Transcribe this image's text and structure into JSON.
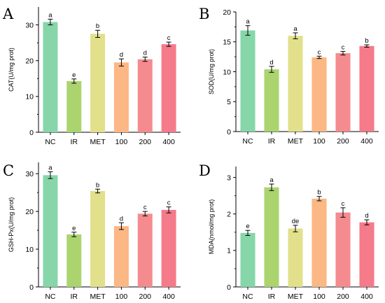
{
  "colors": [
    "#86D6A9",
    "#ABD46F",
    "#E2E08A",
    "#FBB784",
    "#F48B8F",
    "#F57A8A"
  ],
  "chart_data": [
    {
      "type": "bar",
      "panel": "A",
      "ylabel": "CAT(U/mg prot)",
      "categories": [
        "NC",
        "IR",
        "MET",
        "100",
        "200",
        "400"
      ],
      "values": [
        30.8,
        14.3,
        27.5,
        19.5,
        20.4,
        24.6
      ],
      "errors": [
        0.8,
        0.6,
        1.0,
        1.0,
        0.6,
        0.6
      ],
      "labels": [
        "a",
        "e",
        "b",
        "d",
        "d",
        "c"
      ],
      "ylim": [
        0,
        35
      ],
      "yticks": [
        0,
        10,
        20,
        30
      ]
    },
    {
      "type": "bar",
      "panel": "B",
      "ylabel": "SOD(U/mg prot)",
      "categories": [
        "NC",
        "IR",
        "MET",
        "100",
        "200",
        "400"
      ],
      "values": [
        16.9,
        10.4,
        16.0,
        12.4,
        13.1,
        14.3
      ],
      "errors": [
        0.8,
        0.5,
        0.5,
        0.2,
        0.3,
        0.2
      ],
      "labels": [
        "a",
        "d",
        "a",
        "c",
        "c",
        "b"
      ],
      "ylim": [
        0,
        20
      ],
      "yticks": [
        0,
        5,
        10,
        15,
        20
      ]
    },
    {
      "type": "bar",
      "panel": "C",
      "ylabel": "GSH-Px(U/mg prot)",
      "categories": [
        "NC",
        "IR",
        "MET",
        "100",
        "200",
        "400"
      ],
      "values": [
        29.6,
        13.9,
        25.4,
        16.1,
        19.4,
        20.4
      ],
      "errors": [
        0.9,
        0.6,
        0.5,
        0.9,
        0.6,
        0.8
      ],
      "labels": [
        "a",
        "e",
        "b",
        "d",
        "c",
        "c"
      ],
      "ylim": [
        0,
        33
      ],
      "yticks": [
        0,
        10,
        20,
        30
      ]
    },
    {
      "type": "bar",
      "panel": "D",
      "ylabel": "MDA(nmol/mg prot)",
      "categories": [
        "NC",
        "IR",
        "MET",
        "100",
        "200",
        "400"
      ],
      "values": [
        1.48,
        2.73,
        1.6,
        2.42,
        2.04,
        1.77
      ],
      "errors": [
        0.07,
        0.09,
        0.09,
        0.06,
        0.13,
        0.07
      ],
      "labels": [
        "e",
        "a",
        "de",
        "b",
        "c",
        "d"
      ],
      "ylim": [
        0,
        3.3
      ],
      "yticks": [
        0,
        1,
        2,
        3
      ]
    }
  ]
}
